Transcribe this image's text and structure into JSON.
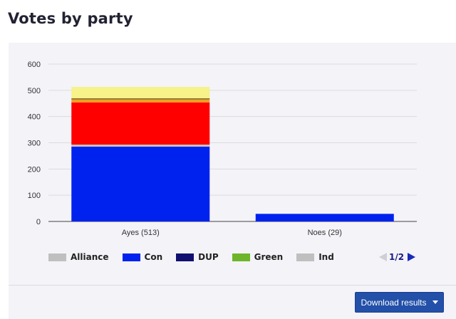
{
  "page": {
    "title": "Votes by party"
  },
  "chart_data": {
    "type": "bar",
    "stacked": true,
    "categories": [
      "Ayes (513)",
      "Noes (29)"
    ],
    "ylim": [
      0,
      600
    ],
    "yticks": [
      0,
      100,
      200,
      300,
      400,
      500,
      600
    ],
    "grid": true,
    "series": [
      {
        "name": "Con",
        "color": "#0022ee",
        "values": [
          285,
          29
        ]
      },
      {
        "name": "",
        "color": "#c7c3bf",
        "values": [
          8,
          0
        ]
      },
      {
        "name": "",
        "color": "#ff0000",
        "values": [
          161,
          0
        ]
      },
      {
        "name": "",
        "color": "#f2a01e",
        "values": [
          12,
          0
        ]
      },
      {
        "name": "",
        "color": "#3b2a06",
        "values": [
          3,
          0
        ]
      },
      {
        "name": "",
        "color": "#f7f28a",
        "values": [
          44,
          0
        ]
      }
    ],
    "legend": {
      "placement": "bottom",
      "items": [
        {
          "label": "Alliance",
          "color": "#bfbfbf"
        },
        {
          "label": "Con",
          "color": "#0022ee"
        },
        {
          "label": "DUP",
          "color": "#101070"
        },
        {
          "label": "Green",
          "color": "#6db52a"
        },
        {
          "label": "Ind",
          "color": "#bfbfbf"
        }
      ],
      "page_label": "1/2"
    }
  },
  "actions": {
    "download_label": "Download results"
  }
}
